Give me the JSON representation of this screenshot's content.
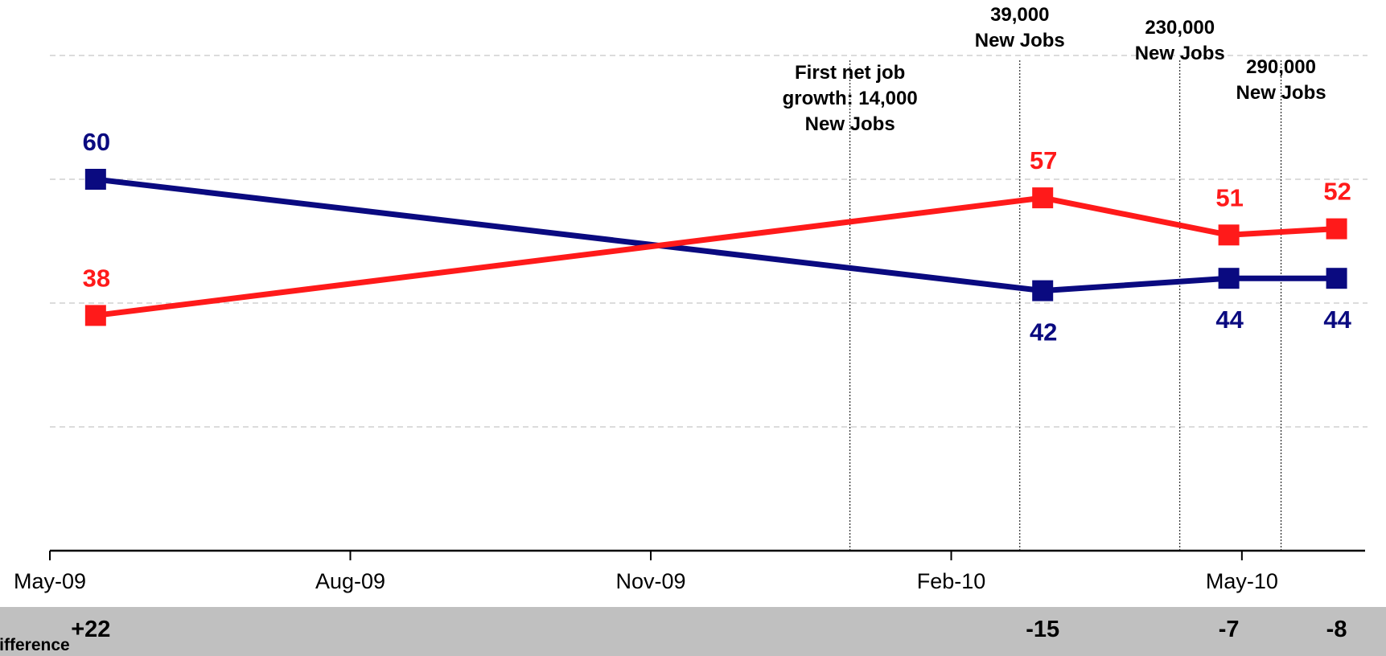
{
  "chart_data": {
    "type": "line",
    "x": [
      "2009-05-15",
      "2010-03-01",
      "2010-04-27",
      "2010-05-30"
    ],
    "x_tick_labels": [
      {
        "date": "2009-05-01",
        "label": "May-09"
      },
      {
        "date": "2009-08-01",
        "label": "Aug-09"
      },
      {
        "date": "2009-11-01",
        "label": "Nov-09"
      },
      {
        "date": "2010-02-01",
        "label": "Feb-10"
      },
      {
        "date": "2010-05-01",
        "label": "May-10"
      }
    ],
    "xlim": [
      "2009-05-01",
      "2010-06-06"
    ],
    "ylim": [
      0,
      80
    ],
    "grid": true,
    "series": [
      {
        "color": "#0a0a80",
        "values": [
          60,
          42,
          44,
          44
        ],
        "labels": [
          "60",
          "42",
          "44",
          "44"
        ],
        "label_position": [
          "above",
          "below",
          "below",
          "below"
        ]
      },
      {
        "color": "#ff1a1a",
        "values": [
          38,
          57,
          51,
          52
        ],
        "labels": [
          "38",
          "57",
          "51",
          "52"
        ],
        "label_position": [
          "above",
          "above",
          "above",
          "above"
        ]
      }
    ],
    "annotations": [
      {
        "date": "2010-01-01",
        "lines": [
          "First net job",
          "growth: 14,000",
          "New Jobs"
        ]
      },
      {
        "date": "2010-02-22",
        "lines": [
          "39,000",
          "New Jobs"
        ]
      },
      {
        "date": "2010-04-12",
        "lines": [
          "230,000",
          "New Jobs"
        ]
      },
      {
        "date": "2010-05-13",
        "lines": [
          "290,000",
          "New Jobs"
        ]
      }
    ],
    "difference_row": {
      "label": "Difference",
      "values": [
        "+22",
        "-15",
        "-7",
        "-8"
      ]
    }
  }
}
